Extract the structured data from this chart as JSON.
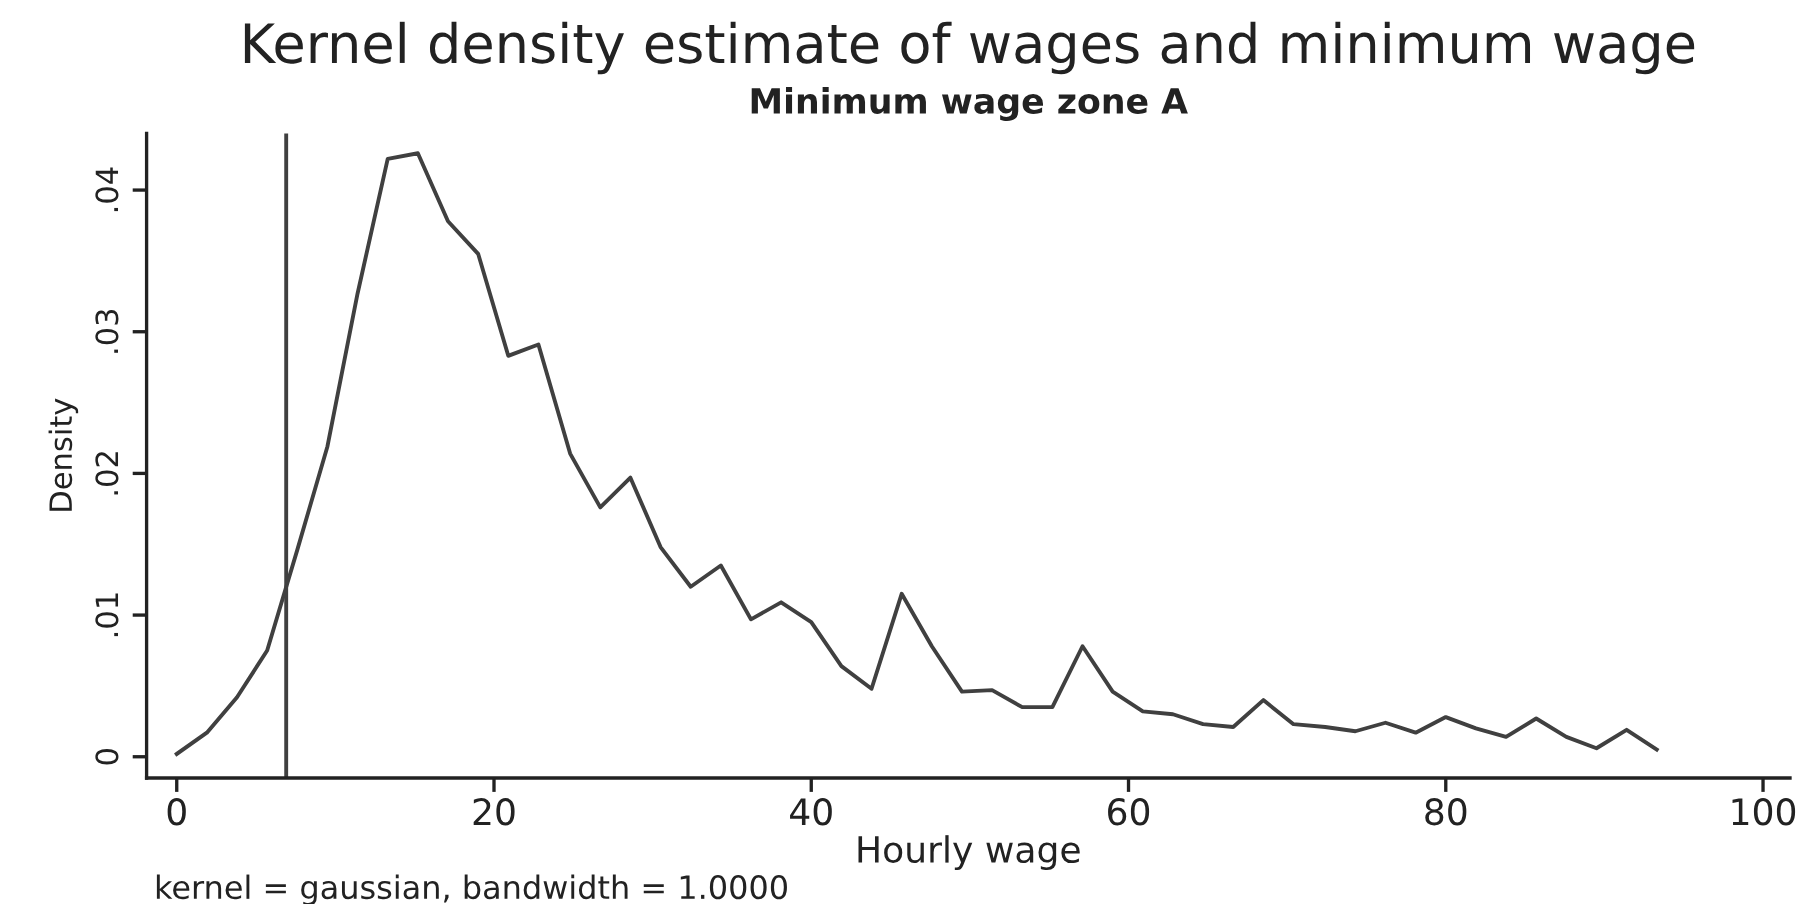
{
  "chart_data": {
    "type": "line",
    "title": "Kernel density estimate of wages and minimum wage",
    "subtitle": "Minimum wage zone A",
    "xlabel": "Hourly wage",
    "ylabel": "Density",
    "annotations": [
      "kernel = gaussian, bandwidth = 1.0000"
    ],
    "x": [
      0,
      1.9,
      3.8,
      5.7,
      7.6,
      9.5,
      11.4,
      13.3,
      15.2,
      17.1,
      19.0,
      20.9,
      22.8,
      24.8,
      26.7,
      28.6,
      30.5,
      32.4,
      34.3,
      36.2,
      38.1,
      40.0,
      41.9,
      43.8,
      45.7,
      47.6,
      49.5,
      51.4,
      53.3,
      55.2,
      57.1,
      59.0,
      60.9,
      62.8,
      64.7,
      66.6,
      68.5,
      70.4,
      72.4,
      74.3,
      76.2,
      78.1,
      80.0,
      81.9,
      83.8,
      85.7,
      87.6,
      89.5,
      91.4,
      93.3
    ],
    "series": [
      {
        "color": "#404040",
        "values": [
          0.0002,
          0.0017,
          0.0042,
          0.0075,
          0.0146,
          0.0219,
          0.0327,
          0.0422,
          0.0426,
          0.0378,
          0.0355,
          0.0283,
          0.0291,
          0.0214,
          0.0176,
          0.0197,
          0.0148,
          0.012,
          0.0135,
          0.0097,
          0.0109,
          0.0095,
          0.0064,
          0.0048,
          0.0115,
          0.0078,
          0.0046,
          0.0047,
          0.0035,
          0.0035,
          0.0078,
          0.0046,
          0.0032,
          0.003,
          0.0023,
          0.0021,
          0.004,
          0.0023,
          0.0021,
          0.0018,
          0.0024,
          0.0017,
          0.0028,
          0.002,
          0.0014,
          0.0027,
          0.0014,
          0.0006,
          0.0019,
          0.0005
        ]
      }
    ],
    "ref_lines": [
      {
        "axis": "x",
        "value": 6.9,
        "color": "#404040"
      }
    ],
    "xlim": [
      -1.9,
      101.7
    ],
    "ylim": [
      -0.0015,
      0.044
    ],
    "xticks": [
      0,
      20,
      40,
      60,
      80,
      100
    ],
    "yticks": [
      0,
      {
        "value": 0.01,
        "label": ".01"
      },
      {
        "value": 0.02,
        "label": ".02"
      },
      {
        "value": 0.03,
        "label": ".03"
      },
      {
        "value": 0.04,
        "label": ".04"
      }
    ]
  }
}
